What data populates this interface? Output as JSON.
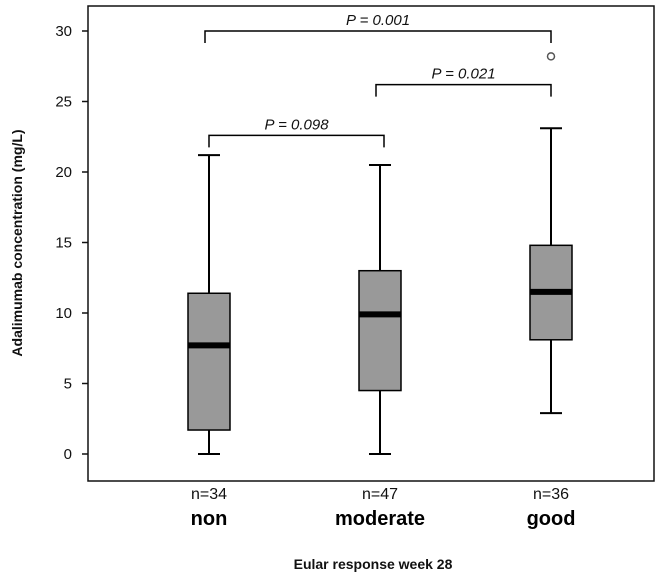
{
  "chart_data": {
    "type": "box",
    "ylabel": "Adalimumab concentration (mg/L)",
    "xlabel": "Eular response week 28",
    "ylim": [
      0,
      30
    ],
    "yticks": [
      0,
      5,
      10,
      15,
      20,
      25,
      30
    ],
    "box_color": "#999999",
    "groups": [
      {
        "category": "non",
        "n_label": "n=34",
        "min": 0,
        "q1": 1.7,
        "median": 7.7,
        "q3": 11.4,
        "max": 21.2,
        "outliers": []
      },
      {
        "category": "moderate",
        "n_label": "n=47",
        "min": 0,
        "q1": 4.5,
        "median": 9.9,
        "q3": 13.0,
        "max": 20.5,
        "outliers": []
      },
      {
        "category": "good",
        "n_label": "n=36",
        "min": 2.9,
        "q1": 8.1,
        "median": 11.5,
        "q3": 14.8,
        "max": 23.1,
        "outliers": [
          28.2
        ]
      }
    ],
    "comparisons": [
      {
        "from": 0,
        "to": 2,
        "label": "P = 0.001",
        "level": 30.0
      },
      {
        "from": 1,
        "to": 2,
        "label": "P = 0.021",
        "level": 26.2
      },
      {
        "from": 0,
        "to": 1,
        "label": "P = 0.098",
        "level": 22.6
      }
    ]
  }
}
